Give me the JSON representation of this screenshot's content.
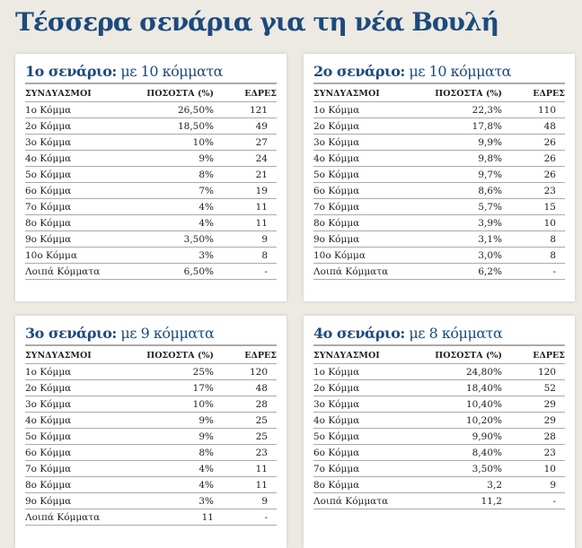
{
  "title": "Τέσσερα σενάρια για τη νέα Βουλή",
  "headers": {
    "name": "ΣΥΝΔΥΑΣΜΟΙ",
    "percent": "ΠΟΣΟΣΤΑ (%)",
    "seats": "ΕΔΡΕΣ"
  },
  "scenarios": [
    {
      "label_bold": "1ο σενάριο:",
      "label_rest": " με 10 κόμματα",
      "rows": [
        {
          "name": "1ο Κόμμα",
          "percent": "26,50%",
          "seats": "121"
        },
        {
          "name": "2ο Κόμμα",
          "percent": "18,50%",
          "seats": "49"
        },
        {
          "name": "3ο Κόμμα",
          "percent": "10%",
          "seats": "27"
        },
        {
          "name": "4ο Κόμμα",
          "percent": "9%",
          "seats": "24"
        },
        {
          "name": "5ο Κόμμα",
          "percent": "8%",
          "seats": "21"
        },
        {
          "name": "6ο Κόμμα",
          "percent": "7%",
          "seats": "19"
        },
        {
          "name": "7ο Κόμμα",
          "percent": "4%",
          "seats": "11"
        },
        {
          "name": "8ο Κόμμα",
          "percent": "4%",
          "seats": "11"
        },
        {
          "name": "9ο Κόμμα",
          "percent": "3,50%",
          "seats": "9"
        },
        {
          "name": "10ο Κόμμα",
          "percent": "3%",
          "seats": "8"
        },
        {
          "name": "Λοιπά Κόμματα",
          "percent": "6,50%",
          "seats": "-"
        }
      ]
    },
    {
      "label_bold": "2ο σενάριο:",
      "label_rest": " με 10 κόμματα",
      "rows": [
        {
          "name": "1ο Κόμμα",
          "percent": "22,3%",
          "seats": "110"
        },
        {
          "name": "2ο Κόμμα",
          "percent": "17,8%",
          "seats": "48"
        },
        {
          "name": "3ο Κόμμα",
          "percent": "9,9%",
          "seats": "26"
        },
        {
          "name": "4ο Κόμμα",
          "percent": "9,8%",
          "seats": "26"
        },
        {
          "name": "5ο Κόμμα",
          "percent": "9,7%",
          "seats": "26"
        },
        {
          "name": "6ο Κόμμα",
          "percent": "8,6%",
          "seats": "23"
        },
        {
          "name": "7ο Κόμμα",
          "percent": "5,7%",
          "seats": "15"
        },
        {
          "name": "8ο Κόμμα",
          "percent": "3,9%",
          "seats": "10"
        },
        {
          "name": "9ο Κόμμα",
          "percent": "3,1%",
          "seats": "8"
        },
        {
          "name": "10ο Κόμμα",
          "percent": "3,0%",
          "seats": "8"
        },
        {
          "name": "Λοιπά Κόμματα",
          "percent": "6,2%",
          "seats": "-"
        }
      ]
    },
    {
      "label_bold": "3ο σενάριο:",
      "label_rest": " με 9 κόμματα",
      "rows": [
        {
          "name": "1ο Κόμμα",
          "percent": "25%",
          "seats": "120"
        },
        {
          "name": "2ο Κόμμα",
          "percent": "17%",
          "seats": "48"
        },
        {
          "name": "3ο Κόμμα",
          "percent": "10%",
          "seats": "28"
        },
        {
          "name": "4ο Κόμμα",
          "percent": "9%",
          "seats": "25"
        },
        {
          "name": "5ο Κόμμα",
          "percent": "9%",
          "seats": "25"
        },
        {
          "name": "6ο Κόμμα",
          "percent": "8%",
          "seats": "23"
        },
        {
          "name": "7ο Κόμμα",
          "percent": "4%",
          "seats": "11"
        },
        {
          "name": "8ο Κόμμα",
          "percent": "4%",
          "seats": "11"
        },
        {
          "name": "9ο Κόμμα",
          "percent": "3%",
          "seats": "9"
        },
        {
          "name": "Λοιπά Κόμματα",
          "percent": "11",
          "seats": "-"
        }
      ]
    },
    {
      "label_bold": "4ο σενάριο:",
      "label_rest": " με 8 κόμματα",
      "rows": [
        {
          "name": "1ο Κόμμα",
          "percent": "24,80%",
          "seats": "120"
        },
        {
          "name": "2ο Κόμμα",
          "percent": "18,40%",
          "seats": "52"
        },
        {
          "name": "3ο Κόμμα",
          "percent": "10,40%",
          "seats": "29"
        },
        {
          "name": "4ο Κόμμα",
          "percent": "10,20%",
          "seats": "29"
        },
        {
          "name": "5ο Κόμμα",
          "percent": "9,90%",
          "seats": "28"
        },
        {
          "name": "6ο Κόμμα",
          "percent": "8,40%",
          "seats": "23"
        },
        {
          "name": "7ο Κόμμα",
          "percent": "3,50%",
          "seats": "10"
        },
        {
          "name": "8ο Κόμμα",
          "percent": "3,2",
          "seats": "9"
        },
        {
          "name": "Λοιπά Κόμματα",
          "percent": "11,2",
          "seats": "-"
        }
      ]
    }
  ]
}
